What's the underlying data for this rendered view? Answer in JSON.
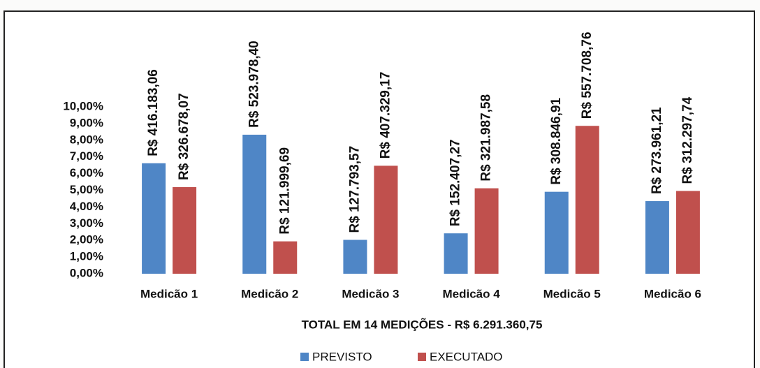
{
  "chart_data": {
    "type": "bar",
    "subtitle": "TOTAL EM 14 MEDIÇÕES - R$ 6.291.360,75",
    "categories": [
      "Medicão 1",
      "Medicão 2",
      "Medicão 3",
      "Medicão 4",
      "Medicão 5",
      "Medicão 6"
    ],
    "series": [
      {
        "name": "PREVISTO",
        "color": "#4f86c6",
        "values": [
          6.62,
          8.33,
          2.03,
          2.42,
          4.91,
          4.35
        ],
        "annotations": [
          "R$ 416.183,06",
          "R$ 523.978,40",
          "R$ 127.793,57",
          "R$ 152.407,27",
          "R$ 308.846,91",
          "R$ 273.961,21"
        ]
      },
      {
        "name": "EXECUTADO",
        "color": "#c0504d",
        "values": [
          5.19,
          1.94,
          6.47,
          5.12,
          8.86,
          4.96
        ],
        "annotations": [
          "R$ 326.678,07",
          "R$ 121.999,69",
          "R$ 407.329,17",
          "R$ 321.987,58",
          "R$ 557.708,76",
          "R$ 312.297,74"
        ]
      }
    ],
    "ylim": [
      0,
      10
    ],
    "yticks": [
      {
        "value": 0,
        "label": "0,00%"
      },
      {
        "value": 1,
        "label": "1,00%"
      },
      {
        "value": 2,
        "label": "2,00%"
      },
      {
        "value": 3,
        "label": "3,00%"
      },
      {
        "value": 4,
        "label": "4,00%"
      },
      {
        "value": 5,
        "label": "5,00%"
      },
      {
        "value": 6,
        "label": "6,00%"
      },
      {
        "value": 7,
        "label": "7,00%"
      },
      {
        "value": 8,
        "label": "8,00%"
      },
      {
        "value": 9,
        "label": "9,00%"
      },
      {
        "value": 10,
        "label": "10,00%"
      }
    ],
    "legend": "bottom"
  }
}
